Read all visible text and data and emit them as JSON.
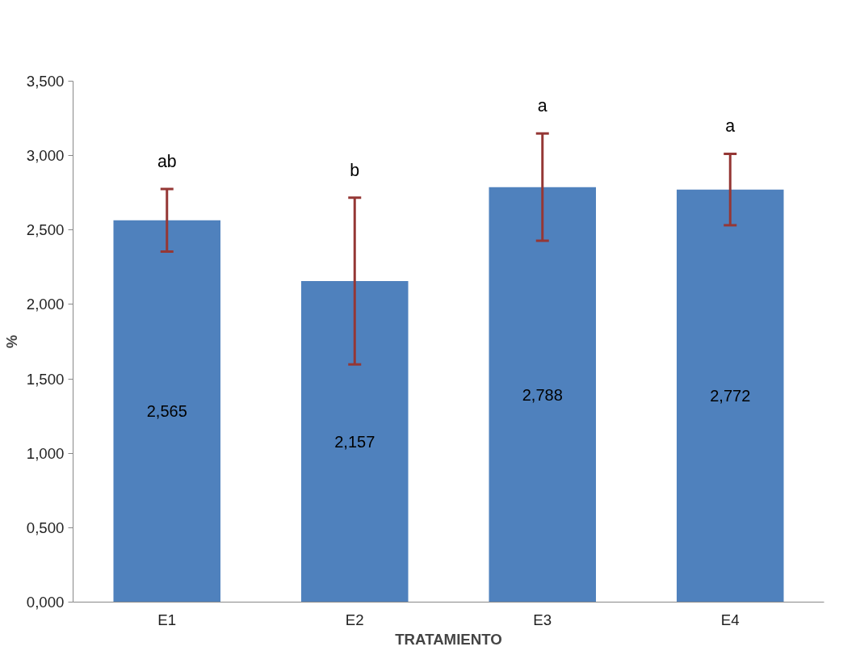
{
  "chart_data": {
    "type": "bar",
    "xlabel": "TRATAMIENTO",
    "ylabel": "%",
    "categories": [
      "E1",
      "E2",
      "E3",
      "E4"
    ],
    "values": [
      2.565,
      2.157,
      2.788,
      2.772
    ],
    "value_labels": [
      "2,565",
      "2,157",
      "2,788",
      "2,772"
    ],
    "errors": [
      0.21,
      0.56,
      0.36,
      0.24
    ],
    "color": "#4f81bd",
    "ylim": [
      0,
      3.5
    ],
    "yticks": [
      {
        "value": 0,
        "label": "0,000"
      },
      {
        "value": 0.5,
        "label": "0,500"
      },
      {
        "value": 1,
        "label": "1,000"
      },
      {
        "value": 1.5,
        "label": "1,500"
      },
      {
        "value": 2,
        "label": "2,000"
      },
      {
        "value": 2.5,
        "label": "2,500"
      },
      {
        "value": 3,
        "label": "3,000"
      },
      {
        "value": 3.5,
        "label": "3,500"
      }
    ],
    "annotations": [
      "ab",
      "b",
      "a",
      "a"
    ],
    "grid": false
  }
}
